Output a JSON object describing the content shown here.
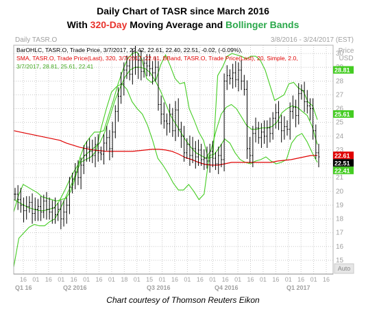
{
  "title": {
    "line1": "Daily Chart of TASR since March 2016",
    "line2_pre": "With ",
    "line2_hl1": "320-Day",
    "line2_mid": " Moving Average and ",
    "line2_hl2": "Bollinger Bands"
  },
  "credit": "Chart courtesy of Thomson Reuters Eikon",
  "colors": {
    "highlight_red": "#e8322b",
    "highlight_green": "#2aa84a",
    "price": "#000000",
    "sma": "#e00000",
    "bbands": "#44cc22",
    "grid": "#c8c8c8"
  },
  "chart_data": {
    "type": "line",
    "header_left": "Daily TASR.O",
    "header_right": "3/8/2016 - 3/24/2017 (EST)",
    "legend": [
      {
        "text": "BarOHLC, TASR.O, Trade Price, 3/7/2017, 22.42, 22.61, 22.40, 22.51, -0.02, (-0.09%),",
        "color": "#000000"
      },
      {
        "text": "SMA, TASR.O, Trade Price(Last), 320, 3/7/2017, 22.61, BBand, TASR.O, Trade Price(Last), 20, Simple, 2.0,",
        "color": "#e00000"
      },
      {
        "text": "3/7/2017, 28.81, 25.61, 22.41",
        "color": "#44aa22"
      }
    ],
    "y_axis": {
      "title_line1": "Price",
      "title_line2": "USD",
      "min": 14,
      "max": 30.6,
      "ticks": [
        15,
        16,
        17,
        18,
        19,
        20,
        21,
        22,
        23,
        24,
        25,
        26,
        27,
        28,
        29,
        30
      ]
    },
    "x_axis": {
      "tick_labels": [
        "16",
        "01",
        "16",
        "01",
        "16",
        "01",
        "16",
        "01",
        "18",
        "01",
        "15",
        "01",
        "16",
        "01",
        "16",
        "01",
        "16",
        "01",
        "16",
        "01",
        "16",
        "01",
        "16",
        "01",
        "16"
      ],
      "periods": [
        "Q1 16",
        "Q2 2016",
        "Q3 2016",
        "Q4 2016",
        "Q1 2017"
      ]
    },
    "price_tags": [
      {
        "label": "28.81",
        "value": 28.81,
        "color": "#44cc22"
      },
      {
        "label": "25.61",
        "value": 25.61,
        "color": "#44cc22"
      },
      {
        "label": "22.61",
        "value": 22.61,
        "color": "#e00000"
      },
      {
        "label": "22.51",
        "value": 22.51,
        "color": "#000000"
      },
      {
        "label": "22.41",
        "value": 22.41,
        "color": "#44cc22"
      }
    ],
    "corner_label": "Auto",
    "series": [
      {
        "name": "BarOHLC",
        "kind": "ohlc",
        "values": [
          19.8,
          19.4,
          19.0,
          18.6,
          18.9,
          19.2,
          18.4,
          18.7,
          18.9,
          18.5,
          19.3,
          18.7,
          18.5,
          18.8,
          18.3,
          18.7,
          18.0,
          18.5,
          19.0,
          20.3,
          20.9,
          21.4,
          21.0,
          21.9,
          22.6,
          23.2,
          22.9,
          22.6,
          23.4,
          22.8,
          22.7,
          23.5,
          23.9,
          23.1,
          24.3,
          25.8,
          26.9,
          27.8,
          28.8,
          29.1,
          28.5,
          29.7,
          29.0,
          29.5,
          28.7,
          29.3,
          29.1,
          28.9,
          28.6,
          29.0,
          26.3,
          25.6,
          25.1,
          24.9,
          25.6,
          24.4,
          25.9,
          24.5,
          24.0,
          22.8,
          23.4,
          22.6,
          23.1,
          22.5,
          23.0,
          22.3,
          22.4,
          22.2,
          22.9,
          22.4,
          22.0,
          22.6,
          22.3,
          28.0,
          28.4,
          28.2,
          28.6,
          28.1,
          28.8,
          28.0,
          27.4,
          23.1,
          22.6,
          24.2,
          24.6,
          23.9,
          24.3,
          24.0,
          24.6,
          24.2,
          25.3,
          25.7,
          25.0,
          24.4,
          24.7,
          24.5,
          25.8,
          26.1,
          25.5,
          27.1,
          27.3,
          26.5,
          26.2,
          26.0,
          24.4,
          22.8,
          22.5
        ]
      },
      {
        "name": "SMA 320",
        "kind": "sma",
        "values": [
          24.4,
          24.3,
          24.2,
          24.1,
          24.0,
          23.9,
          23.8,
          23.7,
          23.5,
          23.35,
          23.2,
          23.1,
          23.0,
          22.95,
          22.9,
          22.9,
          22.9,
          22.9,
          22.9,
          22.95,
          23.0,
          23.05,
          23.05,
          23.0,
          22.9,
          22.7,
          22.45,
          22.3,
          22.1,
          21.95,
          21.9,
          21.9,
          22.0,
          22.1,
          22.1,
          22.1,
          22.1,
          22.1,
          22.1,
          22.1,
          22.2,
          22.25,
          22.3,
          22.4,
          22.5,
          22.6,
          22.61
        ]
      },
      {
        "name": "BBand Upper",
        "kind": "bb",
        "values": [
          18.5,
          19.7,
          20.5,
          20.3,
          20.1,
          19.9,
          19.6,
          19.5,
          19.4,
          19.3,
          19.4,
          19.5,
          20.0,
          21.0,
          22.5,
          23.4,
          23.9,
          24.3,
          24.3,
          24.4,
          25.5,
          26.6,
          27.8,
          28.8,
          29.6,
          30.0,
          30.1,
          29.6,
          28.2,
          27.9,
          28.1,
          29.2,
          29.9,
          29.1,
          28.2,
          27.8,
          27.9,
          26.0,
          25.2,
          24.3,
          23.7,
          22.4,
          22.5,
          28.4,
          29.0,
          29.8,
          30.0,
          29.9,
          29.8,
          29.6,
          29.8,
          29.8,
          29.5,
          28.8,
          27.7,
          26.6,
          26.8,
          27.0,
          27.8,
          27.9,
          27.5,
          27.3,
          26.5,
          26.2,
          25.2
        ]
      },
      {
        "name": "BBand Middle",
        "kind": "bb",
        "values": [
          19.4,
          19.2,
          19.0,
          18.8,
          18.7,
          18.6,
          18.6,
          18.7,
          18.8,
          19.3,
          20.0,
          20.8,
          21.5,
          22.1,
          22.6,
          22.9,
          23.2,
          23.5,
          24.3,
          25.4,
          26.6,
          27.5,
          28.3,
          28.8,
          29.0,
          29.0,
          28.9,
          28.6,
          28.0,
          27.3,
          26.4,
          25.5,
          24.9,
          24.3,
          23.7,
          23.2,
          22.8,
          22.6,
          22.4,
          23.0,
          24.4,
          25.6,
          26.1,
          26.3,
          26.0,
          25.4,
          24.8,
          24.5,
          24.5,
          24.6,
          24.6,
          24.7,
          25.0,
          25.7,
          26.0,
          26.2,
          26.1,
          25.8,
          25.5,
          24.7,
          23.4
        ]
      },
      {
        "name": "BBand Lower",
        "kind": "bb",
        "values": [
          14.5,
          16.6,
          17.0,
          17.4,
          17.6,
          17.5,
          17.5,
          17.8,
          18.0,
          18.7,
          19.5,
          20.3,
          21.2,
          22.1,
          22.3,
          22.5,
          22.9,
          24.6,
          26.0,
          27.2,
          27.6,
          27.8,
          27.4,
          26.5,
          26.0,
          25.6,
          24.8,
          23.7,
          22.4,
          21.9,
          21.3,
          20.6,
          20.1,
          20.1,
          20.5,
          20.0,
          19.4,
          19.8,
          22.6,
          22.7,
          23.2,
          23.8,
          23.5,
          22.8,
          22.3,
          22.1,
          22.0,
          22.2,
          22.3,
          22.5,
          22.2,
          22.0,
          22.1,
          22.3,
          23.5,
          24.0,
          24.2,
          23.6,
          22.8,
          22.1
        ]
      }
    ]
  }
}
